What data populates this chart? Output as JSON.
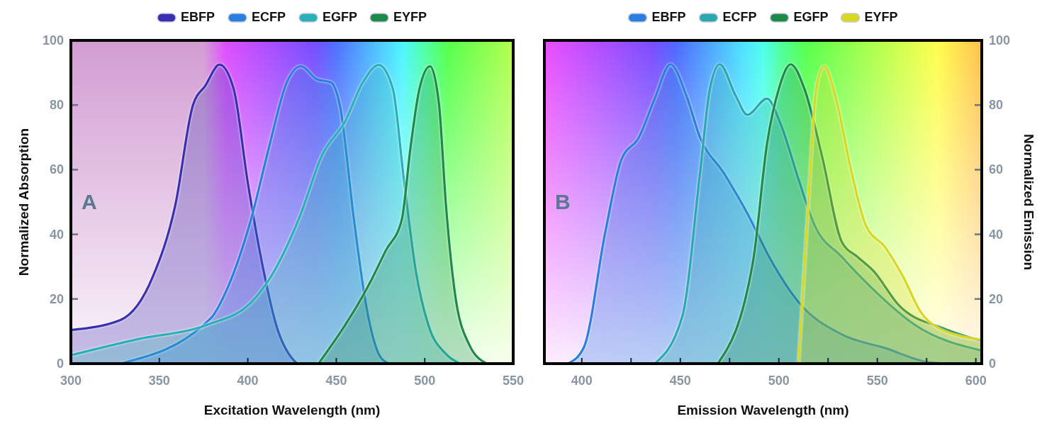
{
  "chart_data": [
    {
      "type": "area",
      "xlabel": "Excitation Wavelength (nm)",
      "ylabel": "Normalized Absorption",
      "legend": "top",
      "annotations": [
        "A"
      ],
      "xlim": [
        300,
        550
      ],
      "xticks": [
        300,
        350,
        400,
        450,
        500,
        550
      ],
      "ylim": [
        0,
        100
      ],
      "yticks": [
        0,
        20,
        40,
        60,
        80,
        100
      ],
      "series": [
        {
          "name": "EBFP",
          "color": "#3a2fb0",
          "x": [
            300,
            328,
            346,
            359,
            369,
            376,
            384,
            392,
            400,
            409,
            416,
            426,
            428
          ],
          "values": [
            10.4,
            13.5,
            26.5,
            49,
            80,
            86,
            92.5,
            85,
            56,
            28.5,
            12,
            1,
            0
          ]
        },
        {
          "name": "ECFP",
          "color": "#2a7fe0",
          "x": [
            328,
            379,
            389,
            402,
            412,
            422,
            430,
            439,
            447,
            452,
            460,
            467,
            475,
            480
          ],
          "values": [
            0,
            14,
            24,
            45,
            67,
            87,
            92,
            88,
            87,
            80,
            44.5,
            17.6,
            2,
            0
          ]
        },
        {
          "name": "EGFP",
          "color": "#2ab0b8",
          "x": [
            300,
            338,
            377,
            402,
            412,
            429,
            442,
            455,
            465,
            474,
            482,
            488,
            495,
            502,
            512,
            520
          ],
          "values": [
            2.6,
            7.6,
            12,
            19,
            26,
            45,
            64.5,
            75,
            87,
            92.4,
            85,
            58,
            28.5,
            12,
            3,
            0
          ]
        },
        {
          "name": "EYFP",
          "color": "#1e8a4a",
          "x": [
            440,
            469,
            478,
            487,
            492,
            497,
            503,
            508,
            512,
            517,
            525,
            535
          ],
          "values": [
            0,
            25,
            35,
            44.5,
            67,
            85,
            92,
            80.6,
            49,
            22,
            6,
            0
          ]
        }
      ]
    },
    {
      "type": "area",
      "xlabel": "Emission Wavelength (nm)",
      "y2label": "Normalized Emission",
      "legend": "top",
      "annotations": [
        "B"
      ],
      "xlim": [
        381,
        603
      ],
      "xticks": [
        400,
        {
          "value": 425,
          "label": null
        },
        450,
        {
          "value": 475,
          "label": null
        },
        500,
        {
          "value": 525,
          "label": null
        },
        550,
        {
          "value": 575,
          "label": null
        },
        600
      ],
      "y2lim": [
        0,
        100
      ],
      "y2ticks": [
        0,
        20,
        40,
        60,
        80,
        100
      ],
      "series": [
        {
          "name": "EBFP",
          "color": "#2a7fe0",
          "axis": "y2",
          "x": [
            393,
            401,
            412,
            420,
            429,
            437,
            445,
            453,
            460,
            472,
            484,
            496,
            510,
            532,
            554,
            576,
            585
          ],
          "values": [
            0,
            5,
            41,
            63,
            70,
            82,
            92.6,
            83,
            70,
            59,
            46.5,
            32,
            19,
            9,
            4.8,
            0.4,
            0
          ]
        },
        {
          "name": "ECFP",
          "color": "#2aa8b0",
          "axis": "y2",
          "x": [
            437,
            451,
            460,
            465,
            470,
            478,
            484,
            494,
            501,
            510,
            518,
            532,
            547,
            569,
            603
          ],
          "values": [
            0,
            14.6,
            59,
            85,
            92.6,
            83,
            77,
            82,
            74,
            57,
            43,
            33,
            23.5,
            12,
            4
          ]
        },
        {
          "name": "EGFP",
          "color": "#1e8a4a",
          "axis": "y2",
          "x": [
            469,
            487,
            494,
            500,
            506,
            513,
            522,
            532,
            540,
            548,
            561,
            583,
            603
          ],
          "values": [
            0,
            32,
            68,
            85,
            92.6,
            85,
            64,
            37.6,
            33,
            28.7,
            18,
            11,
            7
          ]
        },
        {
          "name": "EYFP",
          "color": "#d8d820",
          "axis": "y2",
          "x": [
            510,
            515,
            519,
            523,
            529,
            537,
            544,
            554,
            563,
            572,
            581,
            603
          ],
          "values": [
            0,
            50,
            85,
            92,
            82,
            59,
            43,
            36,
            27,
            16,
            11,
            7.4
          ]
        }
      ]
    }
  ]
}
